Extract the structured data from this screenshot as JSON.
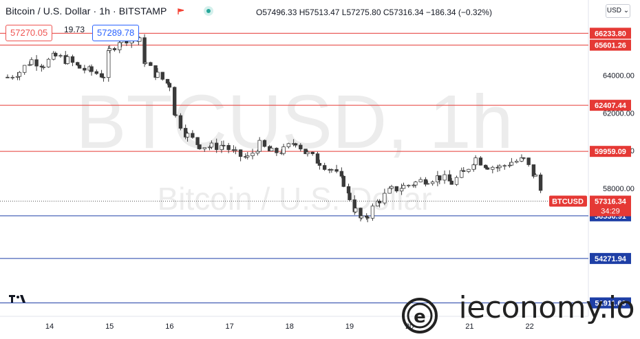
{
  "header": {
    "symbol": "Bitcoin / U.S. Dollar · 1h · BITSTAMP",
    "ohlc": "O57496.33 H57513.47 L57275.80 C57316.34 −186.34 (−0.32%)",
    "bid": "57270.05",
    "spread": "19.73",
    "ask": "57289.78",
    "currency_button": "USD"
  },
  "watermark": {
    "ticker": "BTCUSD, 1h",
    "description": "Bitcoin / U.S. Dollar",
    "site": "ieconomy.io"
  },
  "colors": {
    "up": "#26a69a",
    "down": "#ef5350",
    "resistance": "#e53935",
    "support": "#1e3fa6",
    "price_tag": "#e53935",
    "candle_body": "#3a3a3a"
  },
  "chart_data": {
    "type": "line",
    "title": "Bitcoin / U.S. Dollar · 1h · BITSTAMP",
    "x": [
      "14",
      "15",
      "16",
      "17",
      "18",
      "19",
      "20",
      "21",
      "22"
    ],
    "ylim": [
      51200,
      68000
    ],
    "y_ticks": [
      "58000.00",
      "60000.00",
      "62000.00",
      "64000.00"
    ],
    "x_tick_labels": [
      "14",
      "15",
      "16",
      "17",
      "18",
      "19",
      "20",
      "21",
      "22"
    ],
    "series": [
      {
        "name": "BTCUSD",
        "x": [
          13.3,
          13.5,
          13.7,
          13.9,
          14.1,
          14.3,
          14.5,
          14.7,
          14.9,
          15.0,
          15.2,
          15.4,
          15.5,
          15.6,
          15.8,
          16.0,
          16.1,
          16.3,
          16.5,
          16.7,
          16.9,
          17.1,
          17.3,
          17.5,
          17.7,
          17.9,
          18.1,
          18.3,
          18.5,
          18.7,
          18.9,
          19.0,
          19.1,
          19.2,
          19.3,
          19.5,
          19.7,
          19.9,
          20.1,
          20.3,
          20.5,
          20.7,
          20.9,
          21.1,
          21.3,
          21.5,
          21.7,
          21.9,
          22.1,
          22.25
        ],
        "values": [
          63900,
          64200,
          64800,
          64600,
          65000,
          64800,
          64400,
          64200,
          64000,
          65300,
          66000,
          65900,
          65800,
          64600,
          64000,
          63500,
          61800,
          60800,
          60300,
          60200,
          60300,
          59800,
          59600,
          60300,
          59900,
          60000,
          60500,
          59800,
          59400,
          59000,
          58300,
          57500,
          56800,
          56300,
          56600,
          57400,
          57900,
          58100,
          58300,
          58500,
          58600,
          58300,
          58800,
          59600,
          59200,
          59100,
          59400,
          59500,
          58600,
          57316
        ]
      }
    ],
    "horizontal_levels": {
      "resistance": [
        66233.8,
        65601.26,
        62407.44,
        59959.09
      ],
      "support": [
        56536.91,
        54271.94,
        51911.66
      ]
    },
    "level_labels": [
      "66233.80",
      "65601.26",
      "62407.44",
      "59959.09",
      "56536.91",
      "54271.94",
      "51911.66"
    ],
    "last_price": 57316.34,
    "last_price_label": "57316.34",
    "countdown": "34:29",
    "series_tag": "BTCUSD",
    "legend": "none",
    "grid": false
  }
}
